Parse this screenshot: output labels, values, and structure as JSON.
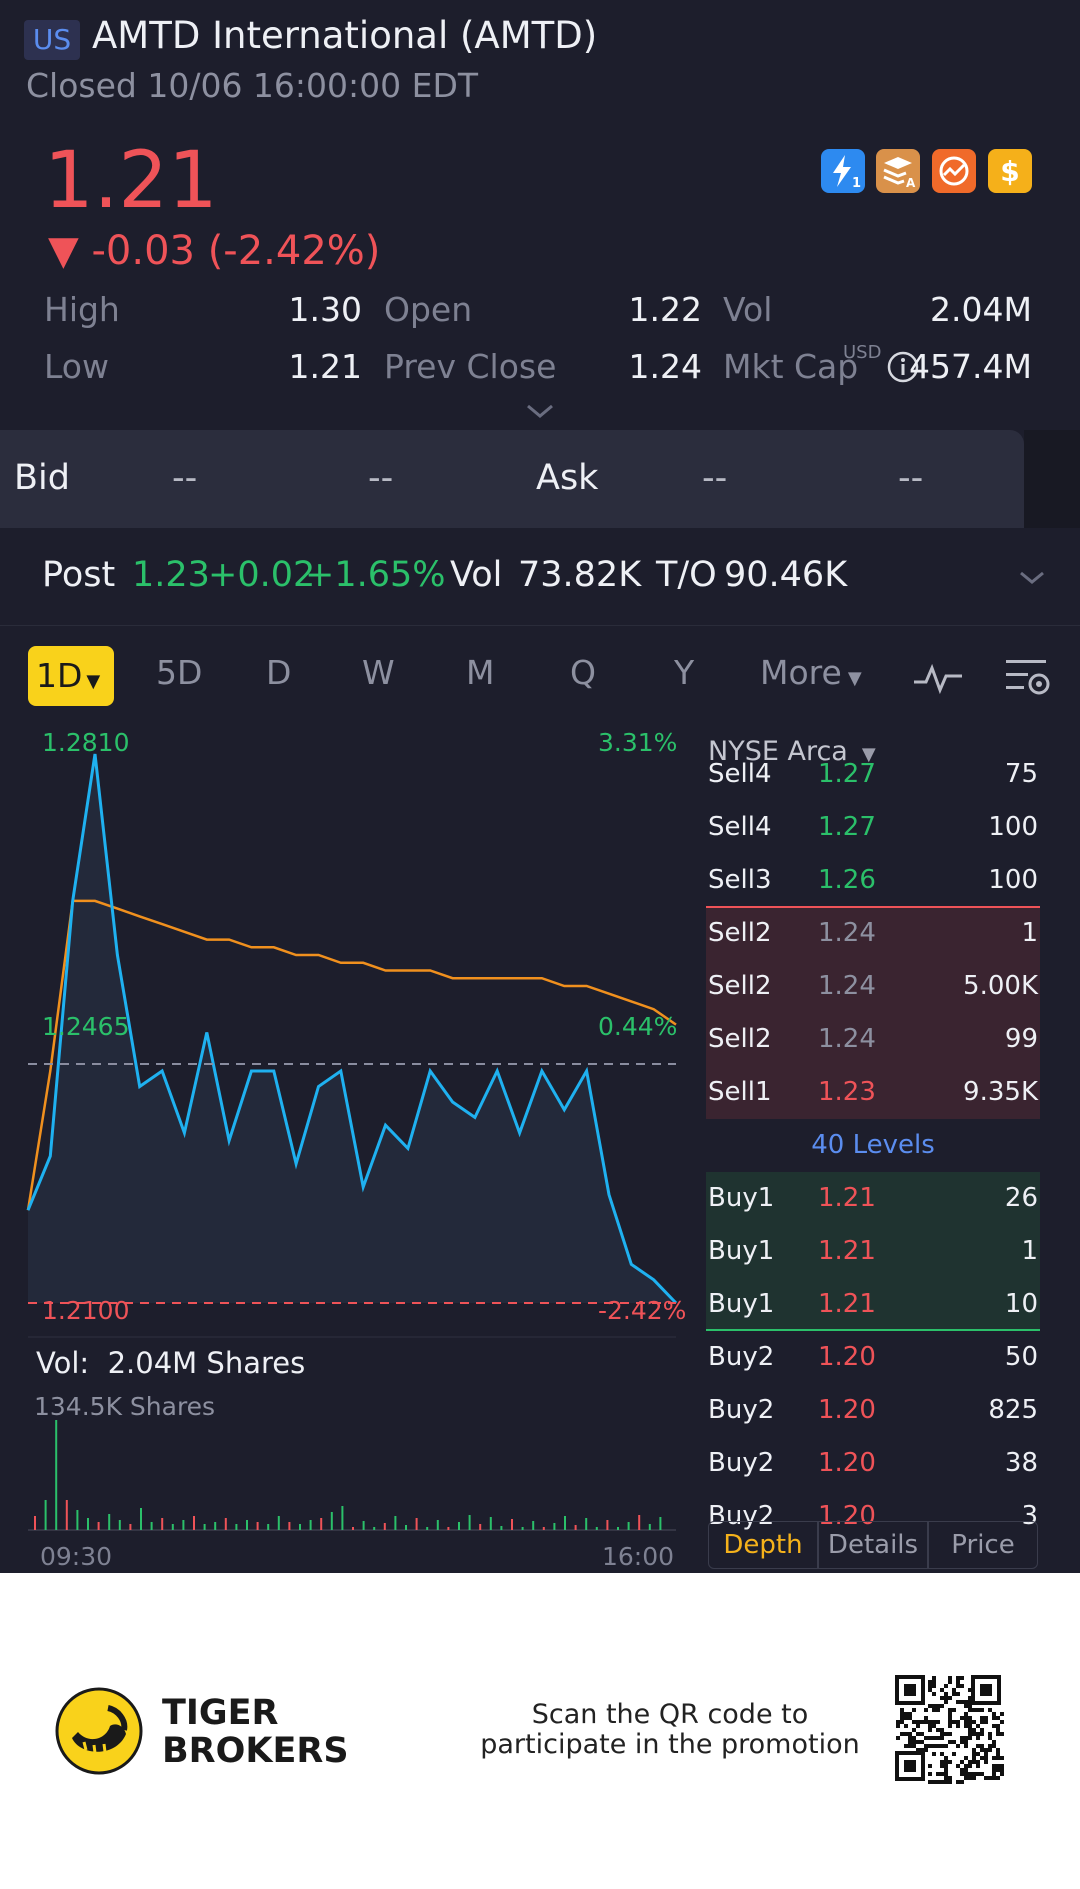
{
  "header": {
    "market_badge": "US",
    "title": "AMTD International (AMTD)",
    "status": "Closed 10/06 16:00:00 EDT"
  },
  "quote": {
    "price": "1.21",
    "change": "▼ -0.03 (-2.42%)",
    "feature_icons": [
      "lightning-level1-icon",
      "layers-a-icon",
      "options-chart-icon",
      "dollar-icon"
    ],
    "stats": {
      "high_label": "High",
      "high": "1.30",
      "open_label": "Open",
      "open": "1.22",
      "vol_label": "Vol",
      "vol": "2.04M",
      "low_label": "Low",
      "low": "1.21",
      "prev_close_label": "Prev Close",
      "prev_close": "1.24",
      "mkt_cap_label": "Mkt Cap",
      "mkt_cap_currency": "USD",
      "mkt_cap": "457.4M"
    }
  },
  "bid_ask": {
    "bid_label": "Bid",
    "bid_price": "--",
    "bid_size": "--",
    "ask_label": "Ask",
    "ask_price": "--",
    "ask_size": "--"
  },
  "post_market": {
    "label": "Post",
    "price": "1.23",
    "change": "+0.02",
    "change_pct": "+1.65%",
    "vol_label": "Vol",
    "vol": "73.82K",
    "to_label": "T/O",
    "to": "90.46K"
  },
  "tabs": {
    "active": "1D",
    "items": [
      "5D",
      "D",
      "W",
      "M",
      "Q",
      "Y"
    ],
    "more": "More"
  },
  "chart": {
    "high_price": "1.2810",
    "high_pct": "3.31%",
    "mid_price": "1.2465",
    "mid_pct": "0.44%",
    "low_price": "1.2100",
    "low_pct": "-2.42%",
    "vol_label": "Vol:",
    "vol_value": "2.04M Shares",
    "vol_peak": "134.5K Shares",
    "start_time": "09:30",
    "end_time": "16:00",
    "colors": {
      "price": "#1fb1f0",
      "avg": "#f0901e",
      "up": "#2bc06a",
      "down": "#ef5358"
    }
  },
  "chart_data": {
    "type": "line",
    "x_range": [
      "09:30",
      "16:00"
    ],
    "ylim": [
      1.21,
      1.281
    ],
    "prev_close": 1.24,
    "series": [
      {
        "name": "Price",
        "values": [
          1.222,
          1.229,
          1.262,
          1.281,
          1.255,
          1.238,
          1.24,
          1.232,
          1.245,
          1.231,
          1.24,
          1.24,
          1.228,
          1.238,
          1.24,
          1.225,
          1.233,
          1.23,
          1.24,
          1.236,
          1.234,
          1.24,
          1.232,
          1.24,
          1.235,
          1.24,
          1.224,
          1.215,
          1.213,
          1.21
        ]
      },
      {
        "name": "Avg",
        "values": [
          1.222,
          1.24,
          1.262,
          1.262,
          1.261,
          1.26,
          1.259,
          1.258,
          1.257,
          1.257,
          1.256,
          1.256,
          1.255,
          1.255,
          1.254,
          1.254,
          1.253,
          1.253,
          1.253,
          1.252,
          1.252,
          1.252,
          1.252,
          1.252,
          1.251,
          1.251,
          1.25,
          1.249,
          1.248,
          1.246
        ]
      }
    ]
  },
  "order_book": {
    "exchange": "NYSE Arca",
    "sells": [
      {
        "label": "Sell4",
        "price": "1.27",
        "qty": "75"
      },
      {
        "label": "Sell4",
        "price": "1.27",
        "qty": "100"
      },
      {
        "label": "Sell3",
        "price": "1.26",
        "qty": "100"
      },
      {
        "label": "Sell2",
        "price": "1.24",
        "qty": "1"
      },
      {
        "label": "Sell2",
        "price": "1.24",
        "qty": "5.00K"
      },
      {
        "label": "Sell2",
        "price": "1.24",
        "qty": "99"
      },
      {
        "label": "Sell1",
        "price": "1.23",
        "qty": "9.35K"
      }
    ],
    "levels": "40 Levels",
    "buys": [
      {
        "label": "Buy1",
        "price": "1.21",
        "qty": "26"
      },
      {
        "label": "Buy1",
        "price": "1.21",
        "qty": "1"
      },
      {
        "label": "Buy1",
        "price": "1.21",
        "qty": "10"
      },
      {
        "label": "Buy2",
        "price": "1.20",
        "qty": "50"
      },
      {
        "label": "Buy2",
        "price": "1.20",
        "qty": "825"
      },
      {
        "label": "Buy2",
        "price": "1.20",
        "qty": "38"
      },
      {
        "label": "Buy2",
        "price": "1.20",
        "qty": "3"
      }
    ],
    "segments": [
      "Depth",
      "Details",
      "Price"
    ]
  },
  "promo": {
    "brand_line1": "TIGER",
    "brand_line2": "BROKERS",
    "text": "Scan the QR code to participate in the promotion"
  }
}
